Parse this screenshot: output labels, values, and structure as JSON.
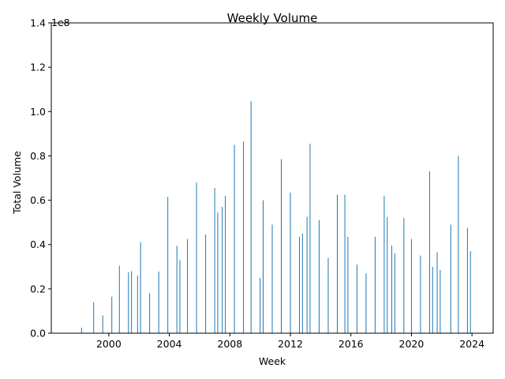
{
  "chart_data": {
    "type": "bar",
    "title": "Weekly Volume",
    "xlabel": "Week",
    "ylabel": "Total Volume",
    "y_offset_label": "1e8",
    "bar_color": "#1f77b4",
    "xlim": [
      1996.2,
      2025.4
    ],
    "ylim": [
      0,
      140000000
    ],
    "x_ticks": [
      2000,
      2004,
      2008,
      2012,
      2016,
      2020,
      2024
    ],
    "x_tick_labels": [
      "2000",
      "2004",
      "2008",
      "2012",
      "2016",
      "2020",
      "2024"
    ],
    "y_ticks": [
      0,
      20000000,
      40000000,
      60000000,
      80000000,
      100000000,
      120000000,
      140000000
    ],
    "y_tick_labels": [
      "0.0",
      "0.2",
      "0.4",
      "0.6",
      "0.8",
      "1.0",
      "1.2",
      "1.4"
    ],
    "grid": false,
    "legend": "none",
    "x": [
      1998.2,
      1999.0,
      1999.6,
      2000.2,
      2000.7,
      2001.3,
      2001.5,
      2001.9,
      2002.1,
      2002.7,
      2003.3,
      2003.9,
      2004.5,
      2004.7,
      2005.2,
      2005.8,
      2006.4,
      2007.0,
      2007.2,
      2007.5,
      2007.7,
      2008.3,
      2008.9,
      2009.4,
      2010.0,
      2010.2,
      2010.8,
      2011.4,
      2012.0,
      2012.6,
      2012.8,
      2013.1,
      2013.3,
      2013.9,
      2014.5,
      2015.1,
      2015.6,
      2015.8,
      2016.4,
      2017.0,
      2017.6,
      2018.2,
      2018.4,
      2018.7,
      2018.9,
      2019.5,
      2020.0,
      2020.6,
      2021.2,
      2021.4,
      2021.7,
      2021.9,
      2022.6,
      2023.1,
      2023.7,
      2023.9
    ],
    "values": [
      2500000,
      14000000,
      8000000,
      16500000,
      30500000,
      27500000,
      28000000,
      26000000,
      41000000,
      18000000,
      27800000,
      61500000,
      39500000,
      33000000,
      42500000,
      68000000,
      44500000,
      65500000,
      54500000,
      57000000,
      62000000,
      85000000,
      86500000,
      104700000,
      25000000,
      60000000,
      49000000,
      78500000,
      63500000,
      43500000,
      45000000,
      52500000,
      85500000,
      51000000,
      34000000,
      62500000,
      62500000,
      43500000,
      31000000,
      27000000,
      43500000,
      62000000,
      52500000,
      39500000,
      36000000,
      52000000,
      42500000,
      35000000,
      73000000,
      30000000,
      36500000,
      28500000,
      49000000,
      80000000,
      47500000,
      37000000
    ]
  }
}
